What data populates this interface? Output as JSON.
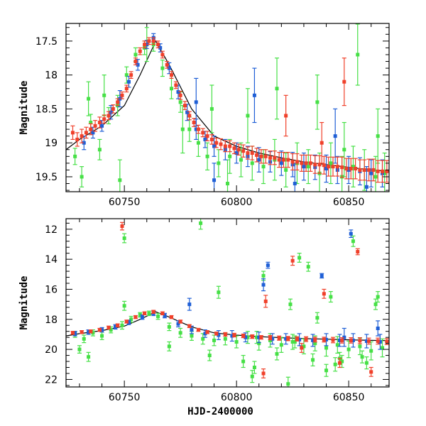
{
  "chart_data": [
    {
      "type": "scatter",
      "panel": "top",
      "title": "",
      "xlabel": "",
      "ylabel": "Magnitude",
      "xlim": [
        60724,
        60868
      ],
      "ylim": [
        19.72,
        17.24
      ],
      "y_inverted": true,
      "xticks": [
        60750,
        60800,
        60850
      ],
      "yticks": [
        17.5,
        18,
        18.5,
        19,
        19.5
      ],
      "grid": false,
      "colors": {
        "blue": "#1f5fd6",
        "green": "#46e046",
        "red": "#f0402a",
        "model": "#000000"
      },
      "model_curve": {
        "name": "",
        "x": [
          60724,
          60730,
          60740,
          60750,
          60757,
          60764,
          60770,
          60780,
          60790,
          60800,
          60810,
          60820,
          60830,
          60840,
          60850,
          60860,
          60868
        ],
        "y": [
          19.1,
          18.95,
          18.75,
          18.45,
          18.0,
          17.5,
          17.85,
          18.5,
          18.9,
          19.05,
          19.15,
          19.22,
          19.28,
          19.32,
          19.36,
          19.4,
          19.42
        ]
      },
      "series": [
        {
          "name": "",
          "color": "blue",
          "x": [
            60732,
            60736,
            60740,
            60744,
            60748,
            60752,
            60756,
            60760,
            60763,
            60766,
            60770,
            60774,
            60778,
            60782,
            60786,
            60790,
            60795,
            60800,
            60805,
            60810,
            60815,
            60820,
            60825,
            60830,
            60835,
            60840,
            60845,
            60850,
            60855,
            60860,
            60865,
            60782,
            60790,
            60808,
            60826,
            60844,
            60858
          ],
          "y": [
            19.0,
            18.85,
            18.75,
            18.55,
            18.35,
            18.1,
            17.85,
            17.55,
            17.45,
            17.6,
            17.9,
            18.25,
            18.55,
            18.8,
            18.95,
            19.05,
            19.1,
            19.15,
            19.2,
            19.25,
            19.28,
            19.3,
            19.32,
            19.35,
            19.36,
            19.38,
            19.4,
            19.4,
            19.42,
            19.45,
            19.45,
            18.4,
            19.55,
            18.3,
            19.6,
            18.9,
            19.65
          ],
          "yerr": [
            0.1,
            0.08,
            0.08,
            0.1,
            0.12,
            0.08,
            0.08,
            0.06,
            0.06,
            0.06,
            0.08,
            0.1,
            0.12,
            0.15,
            0.12,
            0.15,
            0.15,
            0.15,
            0.15,
            0.18,
            0.15,
            0.18,
            0.18,
            0.2,
            0.18,
            0.2,
            0.2,
            0.2,
            0.2,
            0.2,
            0.2,
            0.35,
            0.25,
            0.4,
            0.3,
            0.4,
            0.3
          ]
        },
        {
          "name": "",
          "color": "green",
          "x": [
            60728,
            60731,
            60735,
            60739,
            60743,
            60747,
            60751,
            60755,
            60759,
            60763,
            60767,
            60771,
            60775,
            60779,
            60783,
            60787,
            60792,
            60797,
            60802,
            60807,
            60812,
            60817,
            60822,
            60827,
            60832,
            60837,
            60842,
            60847,
            60852,
            60857,
            60862,
            60866,
            60734,
            60748,
            60760,
            60776,
            60789,
            60805,
            60818,
            60836,
            60854,
            60863,
            60741,
            60796,
            60848
          ],
          "y": [
            19.2,
            19.5,
            18.7,
            19.1,
            18.6,
            18.45,
            18.0,
            17.7,
            17.6,
            17.55,
            17.9,
            18.2,
            18.4,
            18.8,
            19.0,
            19.2,
            19.3,
            19.2,
            19.25,
            19.3,
            19.35,
            19.25,
            19.4,
            19.3,
            19.35,
            19.45,
            19.3,
            19.5,
            19.35,
            19.4,
            19.5,
            19.45,
            18.35,
            19.55,
            17.55,
            18.8,
            18.5,
            18.6,
            18.2,
            18.4,
            17.7,
            18.9,
            18.3,
            19.6,
            19.1
          ],
          "yerr": [
            0.12,
            0.15,
            0.12,
            0.15,
            0.12,
            0.15,
            0.12,
            0.1,
            0.1,
            0.1,
            0.12,
            0.15,
            0.15,
            0.18,
            0.2,
            0.2,
            0.2,
            0.25,
            0.25,
            0.25,
            0.25,
            0.3,
            0.25,
            0.3,
            0.25,
            0.3,
            0.3,
            0.3,
            0.3,
            0.3,
            0.3,
            0.3,
            0.25,
            0.3,
            0.25,
            0.35,
            0.35,
            0.4,
            0.45,
            0.4,
            0.45,
            0.4,
            0.3,
            0.35,
            0.4
          ]
        },
        {
          "name": "",
          "color": "red",
          "x": [
            60727,
            60729,
            60731,
            60733,
            60735,
            60737,
            60739,
            60741,
            60743,
            60745,
            60747,
            60749,
            60751,
            60753,
            60755,
            60757,
            60759,
            60761,
            60763,
            60765,
            60767,
            60769,
            60771,
            60773,
            60775,
            60777,
            60779,
            60781,
            60783,
            60785,
            60787,
            60789,
            60791,
            60793,
            60795,
            60797,
            60799,
            60801,
            60803,
            60805,
            60807,
            60809,
            60811,
            60813,
            60815,
            60817,
            60819,
            60821,
            60823,
            60825,
            60827,
            60829,
            60831,
            60833,
            60835,
            60837,
            60839,
            60841,
            60843,
            60845,
            60847,
            60849,
            60851,
            60853,
            60855,
            60857,
            60859,
            60861,
            60863,
            60865,
            60867,
            60822,
            60838,
            60848
          ],
          "y": [
            18.85,
            18.95,
            18.9,
            18.85,
            18.8,
            18.75,
            18.7,
            18.65,
            18.6,
            18.5,
            18.4,
            18.3,
            18.2,
            18.0,
            17.8,
            17.65,
            17.55,
            17.5,
            17.5,
            17.55,
            17.7,
            17.85,
            18.0,
            18.15,
            18.3,
            18.45,
            18.6,
            18.7,
            18.8,
            18.85,
            18.9,
            18.95,
            19.0,
            19.02,
            19.05,
            19.05,
            19.08,
            19.1,
            19.12,
            19.15,
            19.15,
            19.18,
            19.2,
            19.2,
            19.22,
            19.22,
            19.25,
            19.25,
            19.25,
            19.28,
            19.28,
            19.3,
            19.3,
            19.3,
            19.32,
            19.32,
            19.33,
            19.35,
            19.35,
            19.35,
            19.36,
            19.38,
            19.38,
            19.38,
            19.4,
            19.4,
            19.4,
            19.4,
            19.42,
            19.42,
            19.42,
            18.6,
            19.0,
            18.1
          ],
          "yerr": [
            0.1,
            0.1,
            0.1,
            0.08,
            0.08,
            0.08,
            0.08,
            0.06,
            0.06,
            0.06,
            0.05,
            0.05,
            0.05,
            0.05,
            0.05,
            0.05,
            0.05,
            0.05,
            0.05,
            0.05,
            0.05,
            0.05,
            0.05,
            0.05,
            0.06,
            0.06,
            0.06,
            0.06,
            0.06,
            0.06,
            0.07,
            0.07,
            0.07,
            0.08,
            0.08,
            0.08,
            0.08,
            0.08,
            0.09,
            0.09,
            0.1,
            0.1,
            0.1,
            0.1,
            0.1,
            0.1,
            0.11,
            0.11,
            0.11,
            0.12,
            0.12,
            0.12,
            0.12,
            0.12,
            0.13,
            0.13,
            0.13,
            0.14,
            0.14,
            0.14,
            0.15,
            0.15,
            0.15,
            0.15,
            0.15,
            0.15,
            0.16,
            0.16,
            0.16,
            0.16,
            0.16,
            0.3,
            0.3,
            0.35
          ]
        }
      ]
    },
    {
      "type": "scatter",
      "panel": "bottom",
      "title": "",
      "xlabel": "HJD-2400000",
      "ylabel": "Magnitude",
      "xlim": [
        60724,
        60868
      ],
      "ylim": [
        22.5,
        11.3
      ],
      "y_inverted": true,
      "xticks": [
        60750,
        60800,
        60850
      ],
      "yticks": [
        12,
        14,
        16,
        18,
        20,
        22
      ],
      "grid": false,
      "colors": {
        "blue": "#1f5fd6",
        "green": "#46e046",
        "red": "#f0402a",
        "model": "#000000"
      },
      "model_curve": {
        "name": "",
        "x": [
          60724,
          60730,
          60740,
          60750,
          60757,
          60764,
          60770,
          60780,
          60790,
          60800,
          60810,
          60820,
          60830,
          60840,
          60850,
          60860,
          60868
        ],
        "y": [
          19.1,
          18.95,
          18.75,
          18.45,
          18.0,
          17.5,
          17.85,
          18.5,
          18.9,
          19.05,
          19.15,
          19.22,
          19.28,
          19.32,
          19.36,
          19.4,
          19.42
        ]
      },
      "series": [
        {
          "name": "",
          "color": "blue",
          "x": [
            60728,
            60734,
            60740,
            60746,
            60752,
            60758,
            60763,
            60768,
            60774,
            60780,
            60786,
            60792,
            60798,
            60804,
            60810,
            60816,
            60822,
            60828,
            60834,
            60840,
            60846,
            60852,
            60858,
            60864,
            60779,
            60812,
            60814,
            60838,
            60851,
            60848,
            60863
          ],
          "y": [
            18.95,
            18.85,
            18.7,
            18.5,
            18.2,
            17.85,
            17.6,
            17.75,
            18.3,
            18.7,
            18.95,
            19.05,
            19.1,
            19.2,
            19.2,
            19.3,
            19.3,
            19.35,
            19.4,
            19.35,
            19.4,
            19.4,
            19.45,
            19.5,
            17.0,
            15.7,
            14.4,
            15.1,
            12.3,
            19.2,
            18.6
          ],
          "yerr": [
            0.15,
            0.15,
            0.15,
            0.15,
            0.15,
            0.15,
            0.15,
            0.15,
            0.2,
            0.25,
            0.25,
            0.3,
            0.35,
            0.3,
            0.35,
            0.35,
            0.35,
            0.4,
            0.4,
            0.4,
            0.4,
            0.45,
            0.45,
            0.5,
            0.4,
            0.4,
            0.2,
            0.15,
            0.25,
            0.6,
            0.5
          ]
        },
        {
          "name": "",
          "color": "green",
          "x": [
            60728,
            60732,
            60736,
            60740,
            60744,
            60749,
            60753,
            60757,
            60761,
            60765,
            60770,
            60775,
            60780,
            60785,
            60790,
            60795,
            60800,
            60805,
            60810,
            60815,
            60820,
            60825,
            60830,
            60835,
            60840,
            60845,
            60850,
            60855,
            60860,
            60865,
            60730,
            60734,
            60750,
            60750,
            60784,
            60792,
            60803,
            60809,
            60812,
            60826,
            60828,
            60832,
            60836,
            60842,
            60846,
            60852,
            60858,
            60862,
            60770,
            60788,
            60808,
            60818,
            60824,
            60834,
            60844,
            60856,
            60863,
            60823,
            60807,
            60840,
            60847
          ],
          "y": [
            19.0,
            19.3,
            18.9,
            19.1,
            18.7,
            18.4,
            18.0,
            17.7,
            17.6,
            17.8,
            18.5,
            18.9,
            19.1,
            19.3,
            19.4,
            19.3,
            19.5,
            19.2,
            19.6,
            19.4,
            19.7,
            19.5,
            19.8,
            19.6,
            19.9,
            19.7,
            20.0,
            19.8,
            20.1,
            19.9,
            20.0,
            20.5,
            17.1,
            12.6,
            11.6,
            16.2,
            20.8,
            19.2,
            15.1,
            19.5,
            13.9,
            14.5,
            17.9,
            16.5,
            20.6,
            12.8,
            20.9,
            17.0,
            19.8,
            20.4,
            21.2,
            20.3,
            17.0,
            20.7,
            21.0,
            20.5,
            16.5,
            22.3,
            21.8,
            21.4,
            20.8
          ],
          "yerr": [
            0.2,
            0.25,
            0.2,
            0.25,
            0.2,
            0.25,
            0.2,
            0.15,
            0.15,
            0.2,
            0.25,
            0.3,
            0.3,
            0.35,
            0.35,
            0.4,
            0.4,
            0.4,
            0.45,
            0.45,
            0.5,
            0.5,
            0.5,
            0.5,
            0.55,
            0.55,
            0.55,
            0.55,
            0.6,
            0.6,
            0.25,
            0.3,
            0.3,
            0.3,
            0.4,
            0.4,
            0.4,
            0.4,
            0.3,
            0.4,
            0.3,
            0.3,
            0.35,
            0.35,
            0.4,
            0.35,
            0.4,
            0.35,
            0.3,
            0.35,
            0.4,
            0.4,
            0.35,
            0.4,
            0.45,
            0.4,
            0.35,
            0.45,
            0.4,
            0.4,
            0.4
          ]
        },
        {
          "name": "",
          "color": "red",
          "x": [
            60727,
            60731,
            60735,
            60739,
            60743,
            60747,
            60751,
            60755,
            60759,
            60763,
            60767,
            60771,
            60775,
            60779,
            60783,
            60787,
            60791,
            60795,
            60799,
            60803,
            60807,
            60811,
            60815,
            60819,
            60823,
            60827,
            60831,
            60835,
            60839,
            60843,
            60847,
            60851,
            60855,
            60859,
            60863,
            60867,
            60749,
            60813,
            60825,
            60839,
            60854,
            60812,
            60829,
            60846,
            60860
          ],
          "y": [
            18.9,
            18.85,
            18.8,
            18.7,
            18.55,
            18.4,
            18.15,
            17.85,
            17.6,
            17.5,
            17.6,
            17.85,
            18.15,
            18.45,
            18.7,
            18.85,
            18.95,
            19.0,
            19.05,
            19.1,
            19.15,
            19.2,
            19.22,
            19.25,
            19.28,
            19.3,
            19.32,
            19.35,
            19.35,
            19.38,
            19.4,
            19.4,
            19.42,
            19.45,
            19.45,
            19.48,
            11.8,
            16.8,
            14.1,
            16.3,
            13.5,
            21.6,
            19.9,
            20.9,
            21.5
          ],
          "yerr": [
            0.1,
            0.1,
            0.1,
            0.1,
            0.1,
            0.1,
            0.1,
            0.1,
            0.1,
            0.1,
            0.1,
            0.1,
            0.1,
            0.1,
            0.1,
            0.1,
            0.1,
            0.12,
            0.12,
            0.12,
            0.12,
            0.12,
            0.14,
            0.14,
            0.14,
            0.14,
            0.16,
            0.16,
            0.16,
            0.18,
            0.18,
            0.18,
            0.2,
            0.2,
            0.2,
            0.2,
            0.25,
            0.4,
            0.3,
            0.3,
            0.2,
            0.3,
            0.3,
            0.3,
            0.3
          ]
        }
      ]
    }
  ]
}
